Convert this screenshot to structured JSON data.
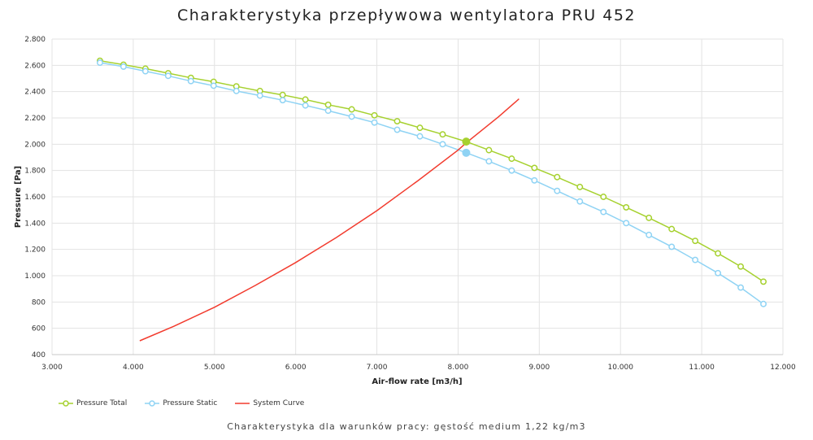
{
  "chart_data": {
    "type": "line",
    "title": "Charakterystyka przepływowa wentylatora PRU 452",
    "subtitle": "Charakterystyka dla warunków pracy: gęstość medium 1,22 kg/m3",
    "xlabel": "Air-flow rate [m3/h]",
    "ylabel": "Pressure [Pa]",
    "xlim": [
      3000,
      12000
    ],
    "ylim": [
      400,
      2800
    ],
    "x_ticks": [
      "3.000",
      "4.000",
      "5.000",
      "6.000",
      "7.000",
      "8.000",
      "9.000",
      "10.000",
      "11.000",
      "12.000"
    ],
    "y_ticks": [
      "400",
      "600",
      "800",
      "1.000",
      "1.200",
      "1.400",
      "1.600",
      "1.800",
      "2.000",
      "2.200",
      "2.400",
      "2.600",
      "2.800"
    ],
    "grid": true,
    "legend_position": "bottom-left",
    "series": [
      {
        "name": "Pressure Total",
        "color": "#a6d12f",
        "marker": "circle-open",
        "x": [
          3590,
          3880,
          4150,
          4430,
          4710,
          4990,
          5270,
          5560,
          5840,
          6120,
          6400,
          6690,
          6970,
          7250,
          7530,
          7810,
          8100,
          8380,
          8660,
          8940,
          9220,
          9500,
          9790,
          10070,
          10350,
          10630,
          10920,
          11200,
          11480,
          11760
        ],
        "y": [
          2635,
          2605,
          2575,
          2540,
          2505,
          2475,
          2440,
          2405,
          2375,
          2340,
          2300,
          2265,
          2220,
          2175,
          2125,
          2075,
          2020,
          1955,
          1890,
          1820,
          1750,
          1675,
          1600,
          1520,
          1440,
          1355,
          1265,
          1170,
          1070,
          955
        ]
      },
      {
        "name": "Pressure Static",
        "color": "#8fd3f4",
        "marker": "circle-open",
        "x": [
          3590,
          3880,
          4150,
          4430,
          4710,
          4990,
          5270,
          5560,
          5840,
          6120,
          6400,
          6690,
          6970,
          7250,
          7530,
          7810,
          8100,
          8380,
          8660,
          8940,
          9220,
          9500,
          9790,
          10070,
          10350,
          10630,
          10920,
          11200,
          11480,
          11760
        ],
        "y": [
          2620,
          2590,
          2555,
          2520,
          2480,
          2445,
          2405,
          2370,
          2335,
          2295,
          2255,
          2210,
          2165,
          2110,
          2060,
          2000,
          1935,
          1870,
          1800,
          1725,
          1645,
          1565,
          1485,
          1400,
          1310,
          1220,
          1120,
          1020,
          910,
          785
        ]
      },
      {
        "name": "System Curve",
        "color": "#f23b2e",
        "marker": "none",
        "x": [
          4080,
          4500,
          5000,
          5500,
          6000,
          6500,
          7000,
          7500,
          8000,
          8100,
          8500,
          8750
        ],
        "y": [
          505,
          615,
          760,
          925,
          1100,
          1290,
          1495,
          1720,
          1955,
          2010,
          2210,
          2345
        ]
      }
    ],
    "operating_points": [
      {
        "series": "Pressure Total",
        "x": 8100,
        "y": 2020,
        "color": "#a6d12f"
      },
      {
        "series": "Pressure Static",
        "x": 8100,
        "y": 1935,
        "color": "#8fd3f4"
      }
    ]
  }
}
